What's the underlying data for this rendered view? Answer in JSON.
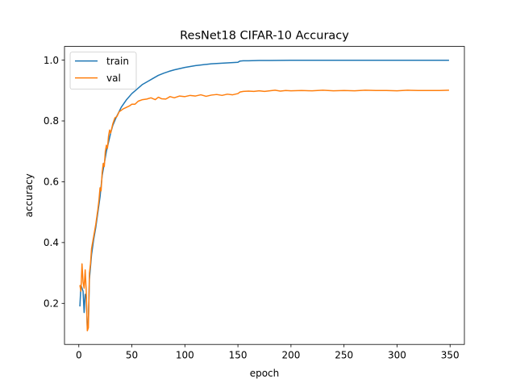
{
  "chart_data": {
    "type": "line",
    "title": "ResNet18 CIFAR-10 Accuracy",
    "xlabel": "epoch",
    "ylabel": "accuracy",
    "xlim": [
      -13.5,
      363.5
    ],
    "ylim": [
      0.065,
      1.045
    ],
    "xticks": [
      0,
      50,
      100,
      150,
      200,
      250,
      300,
      350
    ],
    "yticks": [
      0.2,
      0.4,
      0.6,
      0.8,
      1.0
    ],
    "ytick_labels": [
      "0.2",
      "0.4",
      "0.6",
      "0.8",
      "1.0"
    ],
    "grid": false,
    "legend_position": "upper-left",
    "series": [
      {
        "name": "train",
        "color": "#1f77b4",
        "points": [
          [
            1,
            0.19
          ],
          [
            2,
            0.26
          ],
          [
            3,
            0.25
          ],
          [
            4,
            0.24
          ],
          [
            5,
            0.17
          ],
          [
            6,
            0.23
          ],
          [
            7,
            0.22
          ],
          [
            8,
            0.12
          ],
          [
            9,
            0.14
          ],
          [
            10,
            0.28
          ],
          [
            12,
            0.36
          ],
          [
            14,
            0.41
          ],
          [
            16,
            0.45
          ],
          [
            18,
            0.5
          ],
          [
            20,
            0.55
          ],
          [
            22,
            0.62
          ],
          [
            24,
            0.66
          ],
          [
            26,
            0.7
          ],
          [
            28,
            0.73
          ],
          [
            30,
            0.76
          ],
          [
            32,
            0.785
          ],
          [
            35,
            0.81
          ],
          [
            40,
            0.845
          ],
          [
            45,
            0.87
          ],
          [
            50,
            0.89
          ],
          [
            55,
            0.905
          ],
          [
            60,
            0.92
          ],
          [
            65,
            0.93
          ],
          [
            70,
            0.94
          ],
          [
            75,
            0.95
          ],
          [
            80,
            0.957
          ],
          [
            85,
            0.963
          ],
          [
            90,
            0.968
          ],
          [
            95,
            0.972
          ],
          [
            100,
            0.976
          ],
          [
            105,
            0.979
          ],
          [
            110,
            0.982
          ],
          [
            115,
            0.984
          ],
          [
            120,
            0.986
          ],
          [
            125,
            0.988
          ],
          [
            130,
            0.989
          ],
          [
            135,
            0.99
          ],
          [
            140,
            0.991
          ],
          [
            145,
            0.992
          ],
          [
            150,
            0.993
          ],
          [
            152,
            0.997
          ],
          [
            155,
            0.998
          ],
          [
            160,
            0.998
          ],
          [
            170,
            0.999
          ],
          [
            180,
            0.999
          ],
          [
            200,
            0.9995
          ],
          [
            250,
            0.9995
          ],
          [
            300,
            0.9995
          ],
          [
            349,
            0.9995
          ]
        ]
      },
      {
        "name": "val",
        "color": "#ff7f0e",
        "points": [
          [
            1,
            0.26
          ],
          [
            2,
            0.24
          ],
          [
            3,
            0.33
          ],
          [
            4,
            0.27
          ],
          [
            5,
            0.25
          ],
          [
            6,
            0.31
          ],
          [
            7,
            0.24
          ],
          [
            8,
            0.11
          ],
          [
            9,
            0.12
          ],
          [
            10,
            0.3
          ],
          [
            11,
            0.33
          ],
          [
            12,
            0.38
          ],
          [
            14,
            0.42
          ],
          [
            16,
            0.46
          ],
          [
            18,
            0.51
          ],
          [
            19,
            0.54
          ],
          [
            20,
            0.58
          ],
          [
            21,
            0.57
          ],
          [
            22,
            0.63
          ],
          [
            23,
            0.66
          ],
          [
            24,
            0.65
          ],
          [
            25,
            0.7
          ],
          [
            26,
            0.72
          ],
          [
            27,
            0.71
          ],
          [
            28,
            0.75
          ],
          [
            29,
            0.77
          ],
          [
            30,
            0.76
          ],
          [
            32,
            0.79
          ],
          [
            34,
            0.81
          ],
          [
            36,
            0.815
          ],
          [
            38,
            0.83
          ],
          [
            40,
            0.835
          ],
          [
            42,
            0.84
          ],
          [
            45,
            0.845
          ],
          [
            48,
            0.85
          ],
          [
            50,
            0.855
          ],
          [
            53,
            0.855
          ],
          [
            56,
            0.865
          ],
          [
            60,
            0.87
          ],
          [
            64,
            0.872
          ],
          [
            68,
            0.876
          ],
          [
            72,
            0.87
          ],
          [
            75,
            0.878
          ],
          [
            78,
            0.873
          ],
          [
            82,
            0.872
          ],
          [
            86,
            0.88
          ],
          [
            90,
            0.876
          ],
          [
            95,
            0.882
          ],
          [
            100,
            0.88
          ],
          [
            105,
            0.884
          ],
          [
            110,
            0.882
          ],
          [
            115,
            0.886
          ],
          [
            120,
            0.881
          ],
          [
            125,
            0.885
          ],
          [
            130,
            0.887
          ],
          [
            135,
            0.884
          ],
          [
            140,
            0.888
          ],
          [
            145,
            0.886
          ],
          [
            150,
            0.89
          ],
          [
            152,
            0.895
          ],
          [
            155,
            0.897
          ],
          [
            160,
            0.898
          ],
          [
            165,
            0.897
          ],
          [
            170,
            0.899
          ],
          [
            175,
            0.897
          ],
          [
            180,
            0.899
          ],
          [
            185,
            0.901
          ],
          [
            190,
            0.898
          ],
          [
            195,
            0.9
          ],
          [
            200,
            0.899
          ],
          [
            210,
            0.9
          ],
          [
            220,
            0.899
          ],
          [
            230,
            0.901
          ],
          [
            240,
            0.899
          ],
          [
            250,
            0.9
          ],
          [
            260,
            0.899
          ],
          [
            270,
            0.901
          ],
          [
            280,
            0.9
          ],
          [
            290,
            0.9
          ],
          [
            300,
            0.899
          ],
          [
            310,
            0.901
          ],
          [
            320,
            0.9
          ],
          [
            330,
            0.9
          ],
          [
            340,
            0.9
          ],
          [
            349,
            0.901
          ]
        ]
      }
    ]
  }
}
